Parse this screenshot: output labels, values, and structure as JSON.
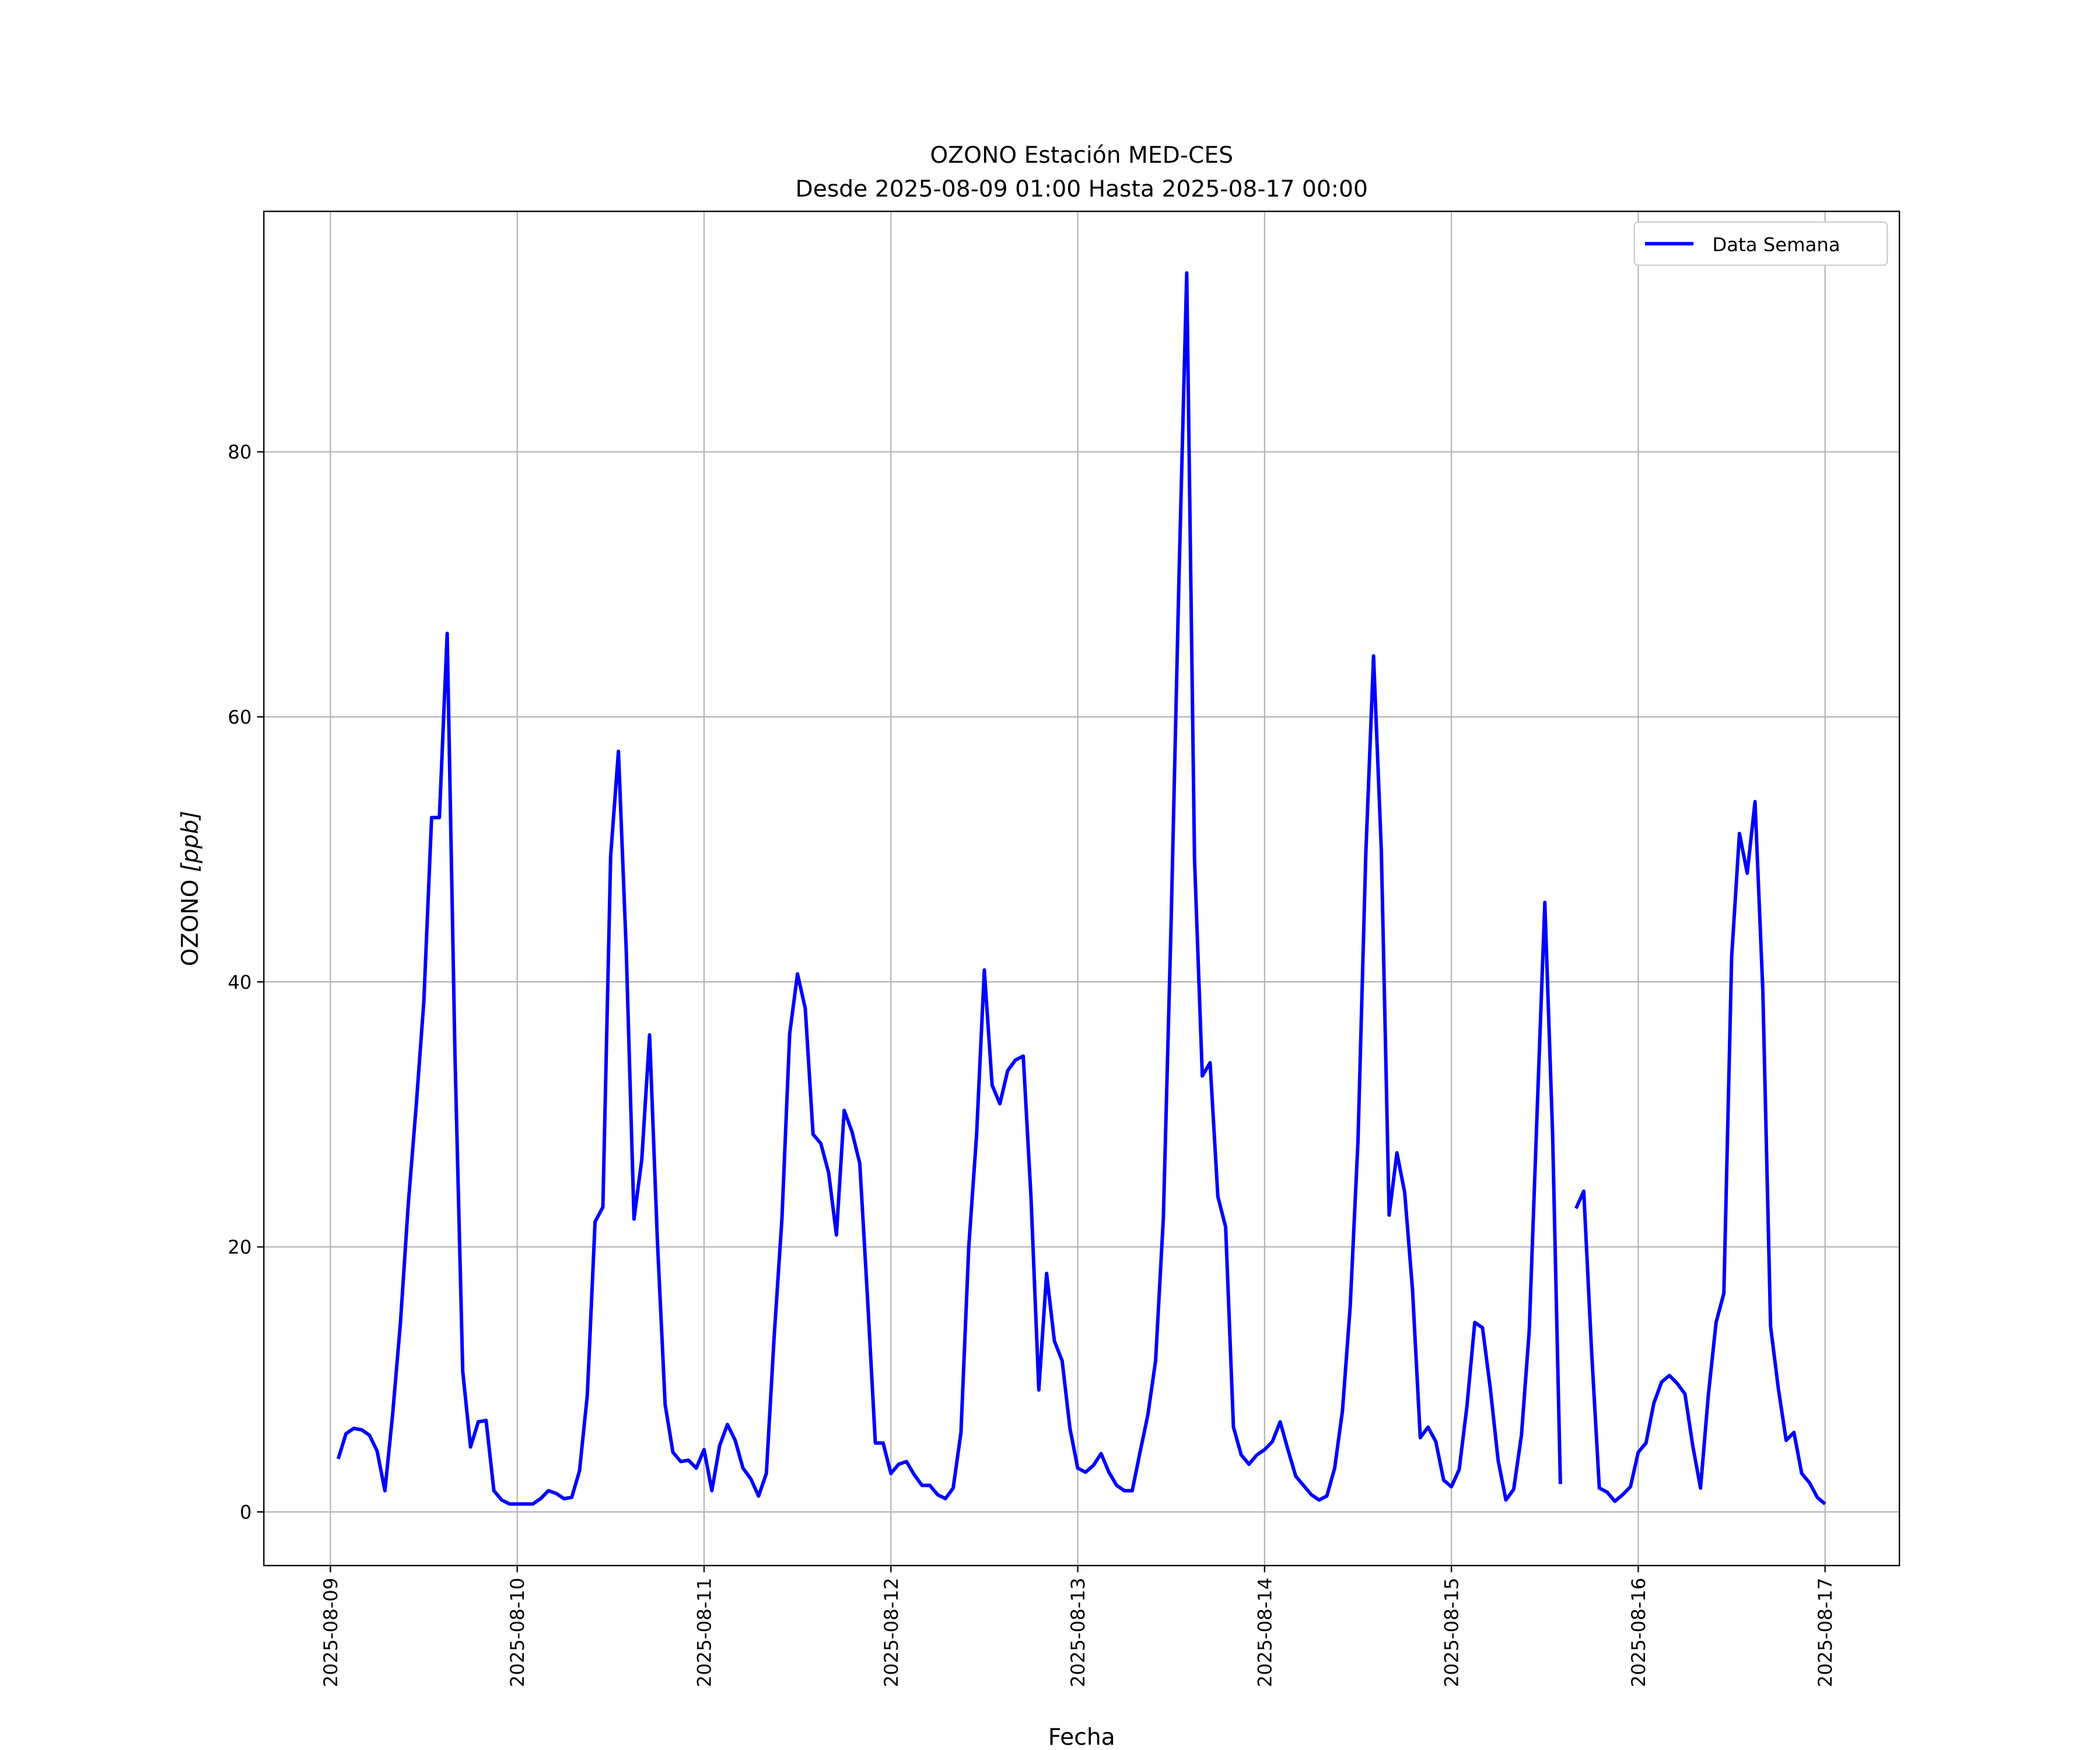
{
  "chart_data": {
    "type": "line",
    "title": "OZONO Estación MED-CES",
    "subtitle": "Desde 2025-08-09 01:00 Hasta 2025-08-17 00:00",
    "xlabel": "Fecha",
    "ylabel_text": "OZONO ",
    "ylabel_unit": "[ppb]",
    "xlim": [
      "2025-08-08 15:27",
      "2025-08-17 09:33"
    ],
    "ylim": [
      -4.05,
      98.15
    ],
    "grid": true,
    "legend_position": "top-right",
    "x_ticks": [
      "2025-08-09",
      "2025-08-10",
      "2025-08-11",
      "2025-08-12",
      "2025-08-13",
      "2025-08-14",
      "2025-08-15",
      "2025-08-16",
      "2025-08-17"
    ],
    "y_ticks": [
      0,
      20,
      40,
      60,
      80
    ],
    "x_first": "2025-08-09 01:00",
    "x_last": "2025-08-17 00:00",
    "x_interval": "1 hour",
    "series": [
      {
        "name": "Data Semana",
        "color": "#0000ff",
        "values_by_day": [
          [
            4.0,
            5.9,
            6.3,
            6.2,
            5.8,
            4.6,
            1.6,
            7.4,
            14.3,
            23.2,
            30.5,
            38.5,
            52.4,
            52.4,
            66.3,
            34.5,
            10.6,
            4.9,
            6.8,
            6.9,
            1.6,
            0.9,
            0.6,
            0.6
          ],
          [
            0.6,
            0.6,
            1.0,
            1.6,
            1.4,
            1.0,
            1.1,
            3.1,
            8.8,
            21.9,
            23.0,
            49.5,
            57.4,
            42.4,
            22.1,
            26.6,
            36.0,
            20.5,
            8.1,
            4.5,
            3.8,
            3.9,
            3.3,
            4.7
          ],
          [
            1.6,
            5.0,
            6.6,
            5.4,
            3.3,
            2.5,
            1.2,
            2.9,
            13.2,
            22.1,
            36.1,
            40.6,
            38.0,
            28.5,
            27.8,
            25.6,
            20.9,
            30.3,
            28.7,
            26.3,
            16.1,
            5.2,
            5.2,
            2.9
          ],
          [
            3.6,
            3.8,
            2.8,
            2.0,
            2.0,
            1.3,
            1.0,
            1.8,
            6.0,
            20.0,
            28.4,
            40.9,
            32.2,
            30.8,
            33.3,
            34.1,
            34.4,
            23.7,
            9.2,
            18.0,
            12.9,
            11.4,
            6.3,
            3.3
          ],
          [
            3.0,
            3.5,
            4.4,
            3.0,
            2.0,
            1.6,
            1.6,
            4.5,
            7.3,
            11.4,
            22.2,
            44.6,
            70.4,
            93.5,
            49.3,
            32.9,
            33.9,
            23.8,
            21.5,
            6.4,
            4.3,
            3.6,
            4.3,
            4.7
          ],
          [
            5.3,
            6.8,
            4.7,
            2.7,
            2.0,
            1.3,
            0.9,
            1.2,
            3.3,
            7.6,
            15.5,
            28.0,
            49.6,
            64.6,
            49.9,
            22.4,
            27.1,
            24.1,
            16.8,
            5.6,
            6.4,
            5.3,
            2.4,
            1.9
          ],
          [
            3.2,
            8.0,
            14.3,
            13.9,
            9.3,
            3.9,
            0.9,
            1.7,
            5.8,
            13.7,
            30.0,
            46.0,
            28.5,
            2.1,
            null,
            22.9,
            24.2,
            12.2,
            1.8,
            1.5,
            0.8,
            1.3,
            1.9,
            4.5
          ],
          [
            5.2,
            8.2,
            9.8,
            10.3,
            9.7,
            8.9,
            5.0,
            1.8,
            8.8,
            14.3,
            16.5,
            41.9,
            51.2,
            48.2,
            53.6,
            39.4,
            14.0,
            9.3,
            5.4,
            6.0,
            2.9,
            2.2,
            1.1,
            0.6
          ]
        ]
      }
    ]
  }
}
